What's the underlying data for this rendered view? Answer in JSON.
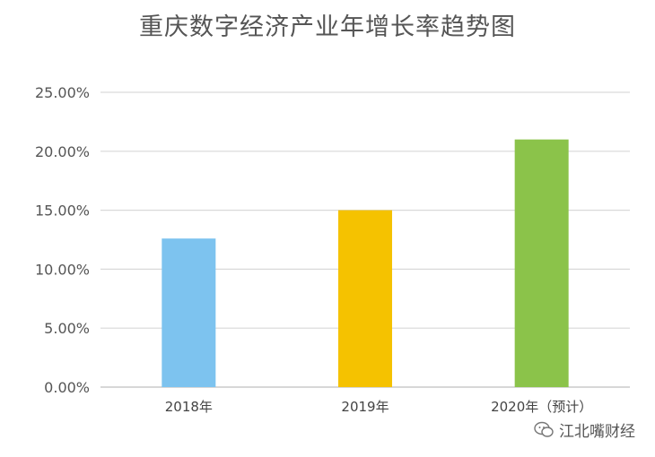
{
  "chart_data": {
    "type": "bar",
    "title": "重庆数字经济产业年增长率趋势图",
    "xlabel": "",
    "ylabel": "",
    "categories": [
      "2018年",
      "2019年",
      "2020年（预计）"
    ],
    "values": [
      12.6,
      15.0,
      21.0
    ],
    "ylim": [
      0,
      25
    ],
    "y_ticks": [
      "0.00%",
      "5.00%",
      "10.00%",
      "15.00%",
      "20.00%",
      "25.00%"
    ],
    "y_tick_values": [
      0,
      5,
      10,
      15,
      20,
      25
    ],
    "bar_colors": [
      "#7dc3ef",
      "#f5c200",
      "#8bc34a"
    ],
    "grid": true,
    "grid_color": "#d9d9d9",
    "legend": "none"
  },
  "watermark": {
    "text": "江北嘴财经",
    "icon": "wechat-bubble-icon"
  }
}
